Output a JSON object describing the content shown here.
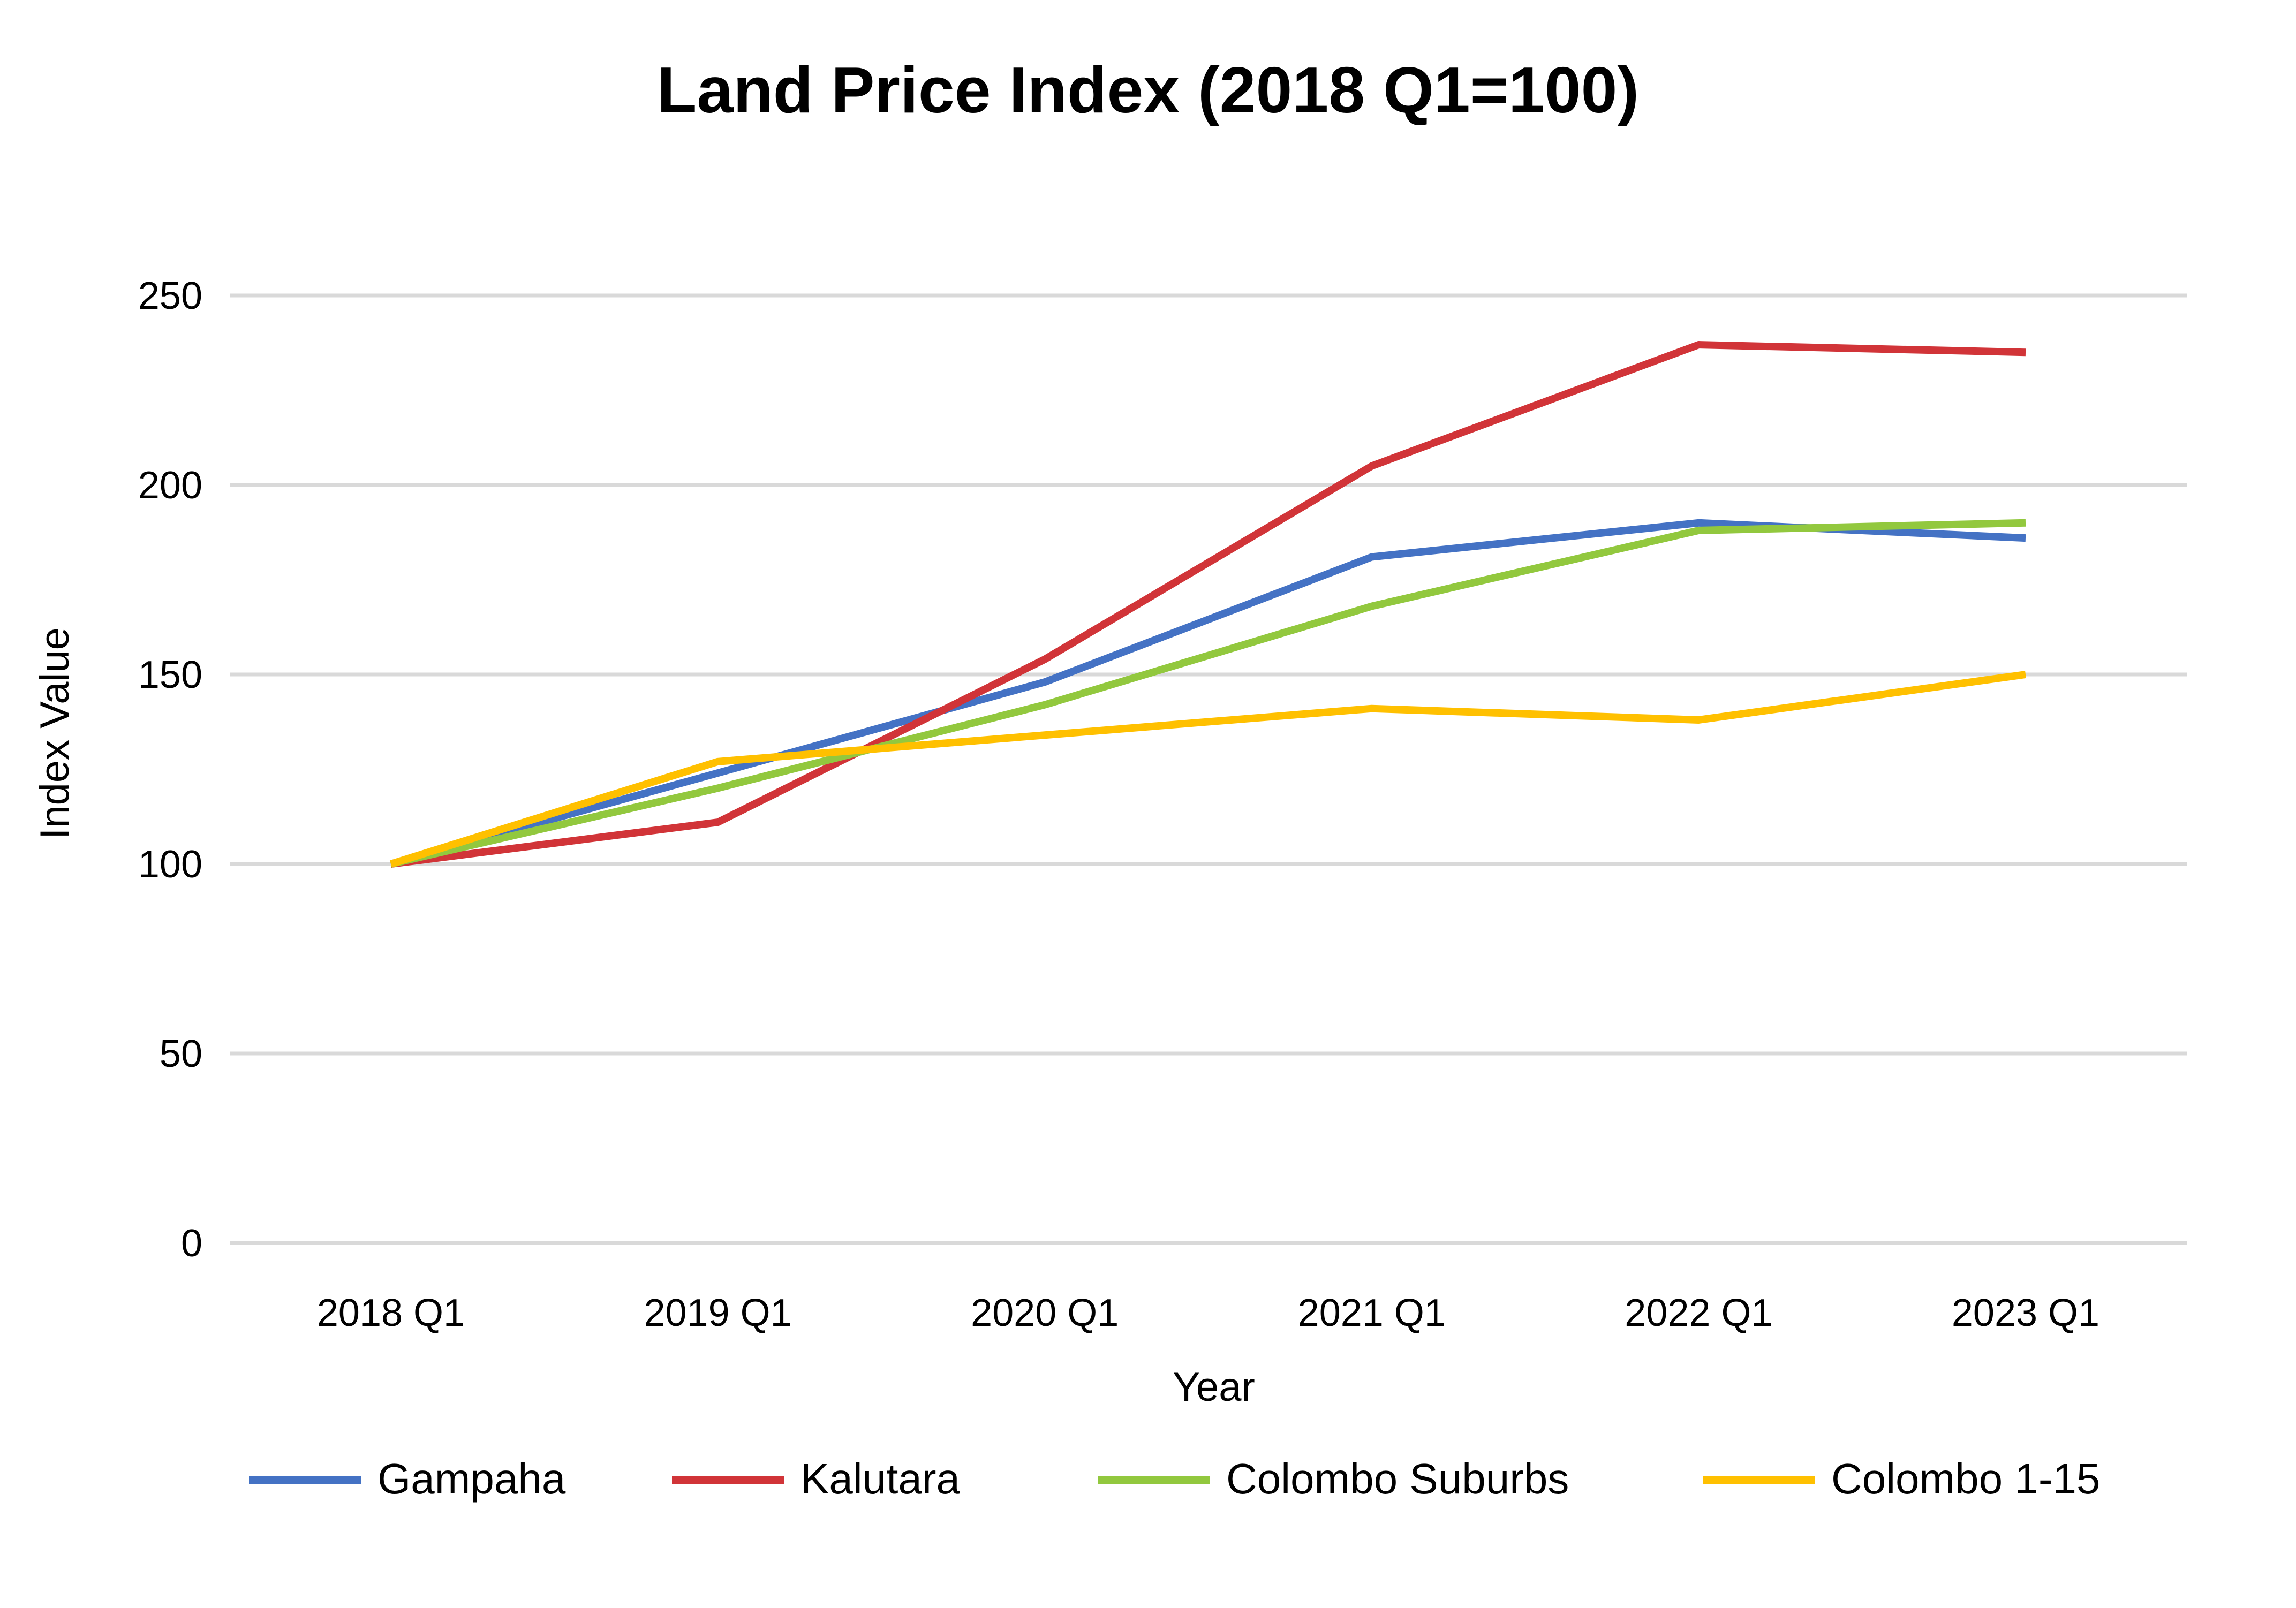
{
  "chart_data": {
    "type": "line",
    "title": "Land Price Index (2018 Q1=100)",
    "xlabel": "Year",
    "ylabel": "Index Value",
    "categories": [
      "2018 Q1",
      "2019 Q1",
      "2020 Q1",
      "2021 Q1",
      "2022 Q1",
      "2023 Q1"
    ],
    "ylim": [
      0,
      250
    ],
    "yticks": [
      0,
      50,
      100,
      150,
      200,
      250
    ],
    "grid": true,
    "legend_position": "bottom",
    "series": [
      {
        "name": "Gampaha",
        "color": "#4472C4",
        "values": [
          100,
          124,
          148,
          181,
          190,
          186
        ]
      },
      {
        "name": "Kalutara",
        "color": "#D13438",
        "values": [
          100,
          111,
          154,
          205,
          237,
          235
        ]
      },
      {
        "name": "Colombo Suburbs",
        "color": "#92C83E",
        "values": [
          100,
          120,
          142,
          168,
          188,
          190
        ]
      },
      {
        "name": "Colombo 1-15",
        "color": "#FFC000",
        "values": [
          100,
          127,
          134,
          141,
          138,
          150
        ]
      }
    ],
    "gridline_color": "#D9D9D9"
  }
}
